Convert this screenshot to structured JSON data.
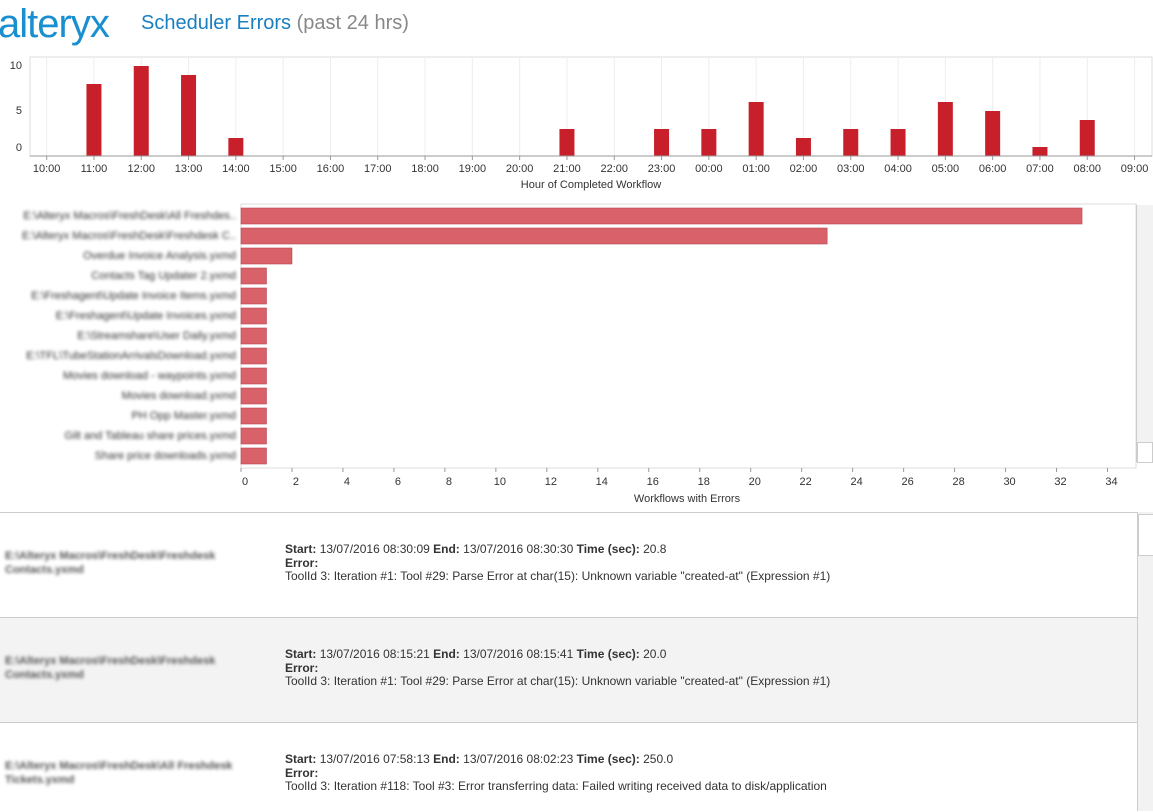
{
  "header": {
    "logo": "alteryx",
    "title": "Scheduler Errors",
    "subtitle": "(past 24 hrs)"
  },
  "chart_data": [
    {
      "type": "bar",
      "orientation": "vertical",
      "xlabel": "Hour of Completed Workflow",
      "categories": [
        "10:00",
        "11:00",
        "12:00",
        "13:00",
        "14:00",
        "15:00",
        "16:00",
        "17:00",
        "18:00",
        "19:00",
        "20:00",
        "21:00",
        "22:00",
        "23:00",
        "00:00",
        "01:00",
        "02:00",
        "03:00",
        "04:00",
        "05:00",
        "06:00",
        "07:00",
        "08:00",
        "09:00"
      ],
      "values": [
        0,
        8,
        10,
        9,
        2,
        0,
        0,
        0,
        0,
        0,
        0,
        3,
        0,
        3,
        3,
        6,
        2,
        3,
        3,
        6,
        5,
        1,
        4,
        0
      ],
      "color": "#c8202a",
      "ylim": [
        0,
        11
      ],
      "yticks": [
        0,
        5,
        10
      ],
      "grid": true
    },
    {
      "type": "bar",
      "orientation": "horizontal",
      "xlabel": "Workflows with Errors",
      "categories": [
        "E:\\Alteryx Macros\\FreshDesk\\All Freshdes..",
        "E:\\Alteryx Macros\\FreshDesk\\Freshdesk C..",
        "Overdue Invoice Analysis.yxmd",
        "Contacts Tag Updater 2.yxmd",
        "E:\\Freshagent\\Update Invoice Items.yxmd",
        "E:\\Freshagent\\Update Invoices.yxmd",
        "E:\\Streamshare\\User Daily.yxmd",
        "E:\\TFL\\TubeStationArrivalsDownload.yxmd",
        "Movies download - waypoints.yxmd",
        "Movies download.yxmd",
        "PH Opp Master.yxmd",
        "Gilt and Tableau share prices.yxmd",
        "Share price downloads.yxmd"
      ],
      "values": [
        33,
        23,
        2,
        1,
        1,
        1,
        1,
        1,
        1,
        1,
        1,
        1,
        1
      ],
      "color": "#d9626a",
      "xlim": [
        0,
        35
      ],
      "xticks": [
        0,
        2,
        4,
        6,
        8,
        10,
        12,
        14,
        16,
        18,
        20,
        22,
        24,
        26,
        28,
        30,
        32,
        34
      ],
      "grid": false
    }
  ],
  "errors": {
    "labels": {
      "start": "Start:",
      "end": "End:",
      "time": "Time (sec):",
      "error": "Error:"
    },
    "rows": [
      {
        "workflow": "E:\\Alteryx Macros\\FreshDesk\\Freshdesk Contacts.yxmd",
        "start": "13/07/2016 08:30:09",
        "end": "13/07/2016 08:30:30",
        "time": "20.8",
        "message": "ToolId 3: Iteration #1: Tool #29: Parse Error at char(15): Unknown variable \"created-at\" (Expression #1)"
      },
      {
        "workflow": "E:\\Alteryx Macros\\FreshDesk\\Freshdesk Contacts.yxmd",
        "start": "13/07/2016 08:15:21",
        "end": "13/07/2016 08:15:41",
        "time": "20.0",
        "message": "ToolId 3: Iteration #1: Tool #29: Parse Error at char(15): Unknown variable \"created-at\" (Expression #1)"
      },
      {
        "workflow": "E:\\Alteryx Macros\\FreshDesk\\All Freshdesk Tickets.yxmd",
        "start": "13/07/2016 07:58:13",
        "end": "13/07/2016 08:02:23",
        "time": "250.0",
        "message": "ToolId 3: Iteration #118: Tool #3: Error transferring data: Failed writing received data to disk/application"
      }
    ]
  }
}
